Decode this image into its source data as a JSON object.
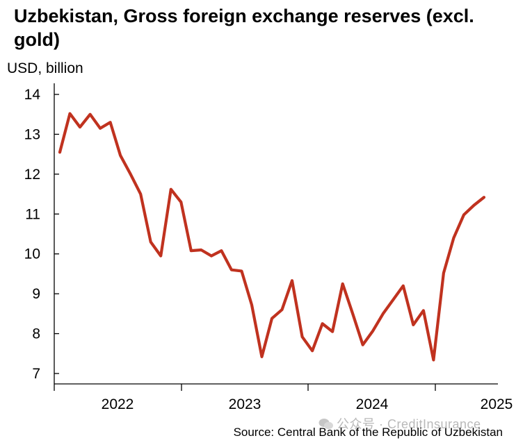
{
  "chart_data": {
    "type": "line",
    "title": "Uzbekistan, Gross foreign exchange reserves (excl. gold)",
    "ylabel": "USD, billion",
    "xlabel": "",
    "ylim": [
      7,
      14
    ],
    "yticks": [
      7,
      8,
      9,
      10,
      11,
      12,
      13,
      14
    ],
    "xticks": [
      "2022",
      "2023",
      "2024",
      "2025"
    ],
    "grid": false,
    "line_color": "#c0321f",
    "series": [
      {
        "x": [
          "2021-12",
          "2022-01",
          "2022-02",
          "2022-03",
          "2022-04",
          "2022-05",
          "2022-06",
          "2022-07",
          "2022-08",
          "2022-09",
          "2022-10",
          "2022-11",
          "2022-12",
          "2023-01",
          "2023-02",
          "2023-03",
          "2023-04",
          "2023-05",
          "2023-06",
          "2023-07",
          "2023-08",
          "2023-09",
          "2023-10",
          "2023-11",
          "2023-12",
          "2024-01",
          "2024-02",
          "2024-03",
          "2024-04",
          "2024-05",
          "2024-06",
          "2024-07",
          "2024-08",
          "2024-09",
          "2024-10",
          "2024-11",
          "2024-12",
          "2025-01",
          "2025-02",
          "2025-03",
          "2025-04",
          "2025-05",
          "2025-06"
        ],
        "values": [
          12.55,
          13.52,
          13.18,
          13.5,
          13.15,
          13.3,
          12.47,
          12.0,
          11.5,
          10.3,
          9.95,
          11.62,
          11.3,
          10.08,
          10.1,
          9.95,
          10.08,
          9.6,
          9.57,
          8.72,
          7.42,
          8.38,
          8.6,
          9.33,
          7.92,
          7.57,
          8.25,
          8.05,
          9.25,
          8.5,
          7.72,
          8.07,
          8.5,
          8.85,
          9.2,
          8.22,
          8.58,
          7.34,
          9.52,
          10.4,
          10.98,
          11.22,
          11.42
        ]
      }
    ]
  },
  "source": "Source: Central Bank of the Republic of Uzbekistan",
  "watermark": "公众号 · CreditInsurance"
}
